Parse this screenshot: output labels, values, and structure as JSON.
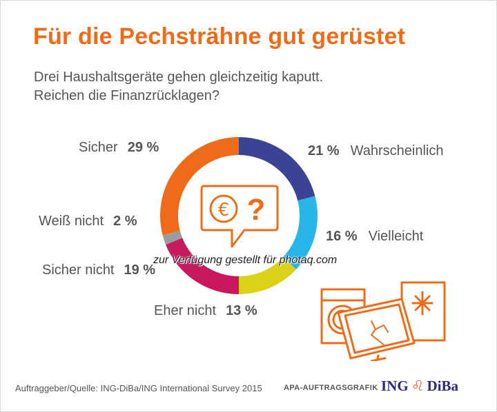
{
  "header": {
    "title": "Für die Pechsträhne gut gerüstet",
    "subtitle_line1": "Drei Haushaltsgeräte gehen gleichzeitig kaputt.",
    "subtitle_line2": "Reichen die Finanzrücklagen?"
  },
  "chart_data": {
    "type": "pie",
    "variant": "donut",
    "title": "Für die Pechsträhne gut gerüstet",
    "categories": [
      "Wahrscheinlich",
      "Vielleicht",
      "Eher nicht",
      "Sicher nicht",
      "Weiß nicht",
      "Sicher"
    ],
    "values": [
      21,
      16,
      13,
      19,
      2,
      29
    ],
    "value_labels": [
      "21 %",
      "16 %",
      "13 %",
      "19 %",
      "2 %",
      "29 %"
    ],
    "unit": "%",
    "colors": [
      "#3b4395",
      "#28b5e8",
      "#dcd118",
      "#c8195f",
      "#9b9b9b",
      "#ee6b1a"
    ],
    "legend": "labels placed beside the ring segments",
    "center_icon": "euro-question-speech-bubble-icon"
  },
  "footer": {
    "source": "Auftraggeber/Quelle: ING-DiBa/ING International Survey 2015",
    "agency": "APA-AUFTRAGSGRAFIK",
    "logo_left": "ING",
    "logo_right": "DiBa"
  },
  "watermark": "zur Verfügung gestellt für photaq.com",
  "colors": {
    "accent": "#ee6b1a",
    "text": "#555555",
    "brand": "#2d2a80"
  }
}
